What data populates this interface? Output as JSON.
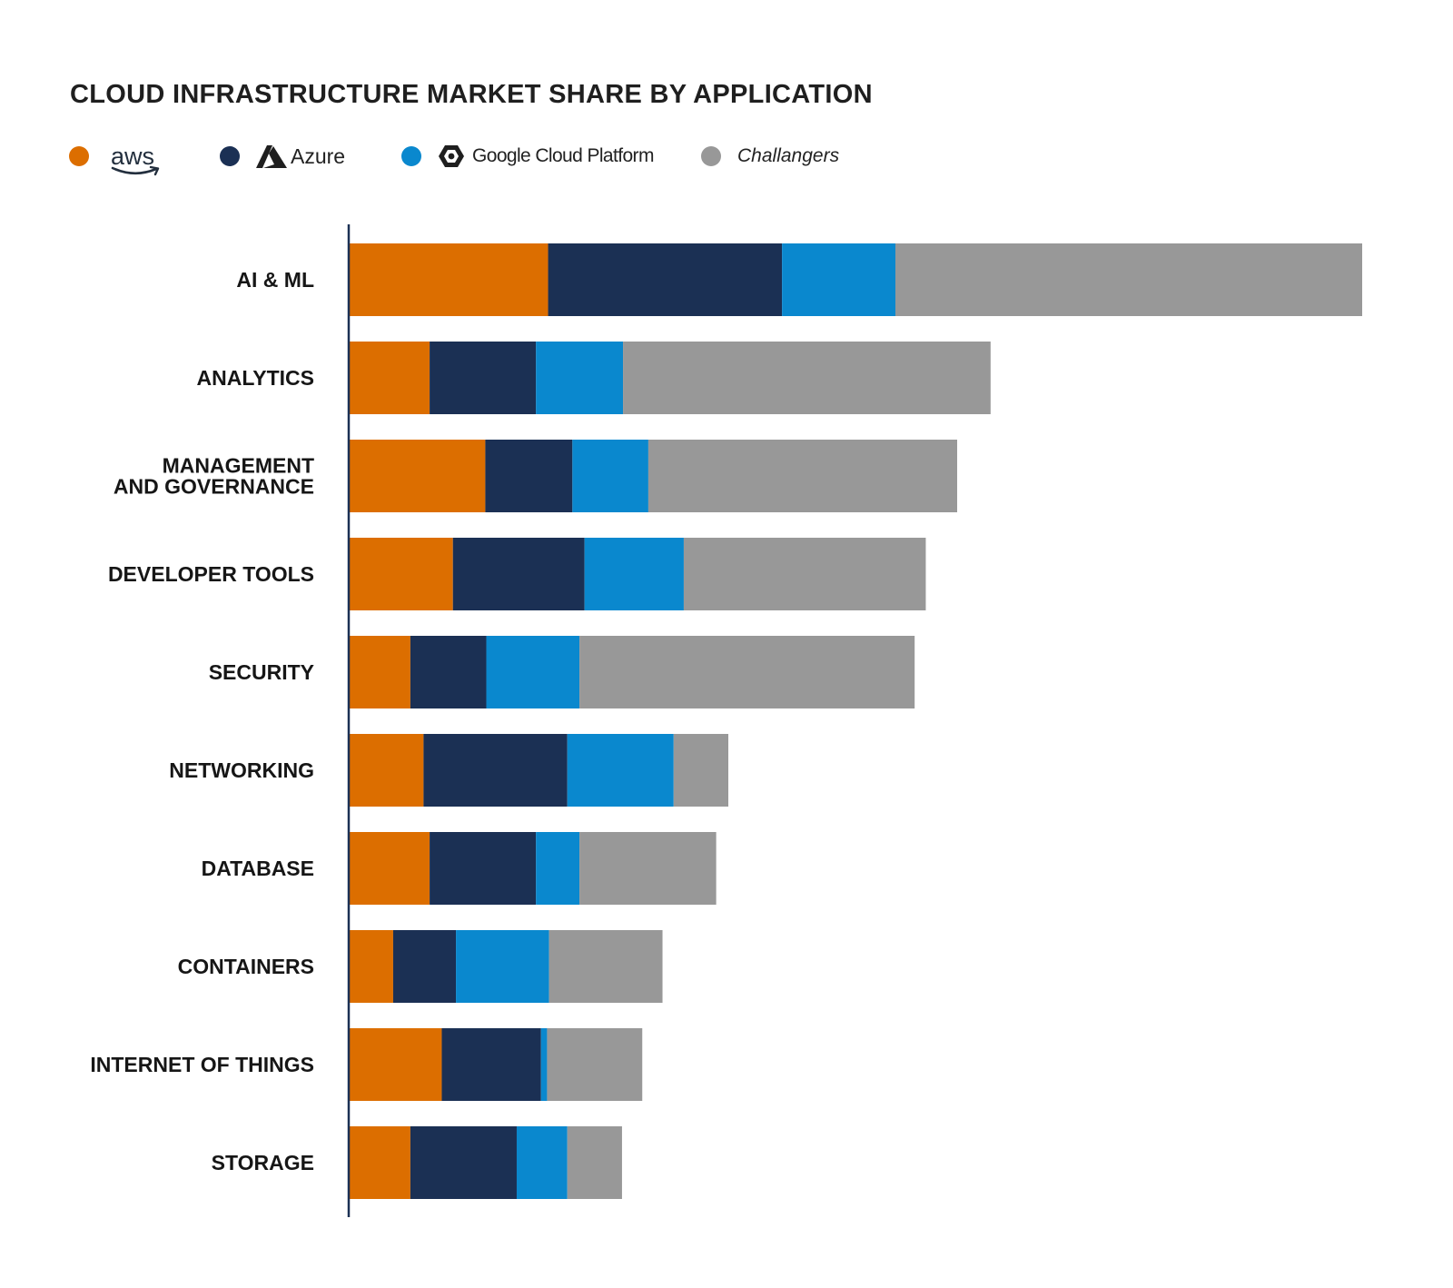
{
  "title": "CLOUD INFRASTRUCTURE MARKET SHARE BY APPLICATION",
  "legend": [
    {
      "name": "aws",
      "color": "#DC6E00",
      "icon": "aws-logo-icon"
    },
    {
      "name": "Azure",
      "color": "#1B3054",
      "icon": "azure-logo-icon"
    },
    {
      "name": "Google Cloud Platform",
      "color": "#0A88CE",
      "icon": "google-cloud-logo-icon"
    },
    {
      "name": "Challangers",
      "color": "#989898",
      "icon": ""
    }
  ],
  "chart_data": {
    "type": "bar",
    "orientation": "horizontal",
    "stacked": true,
    "title": "CLOUD INFRASTRUCTURE MARKET SHARE BY APPLICATION",
    "xlabel": "",
    "ylabel": "",
    "grid": false,
    "legend_position": "top-left",
    "xlim": [
      0,
      100
    ],
    "categories": [
      "AI & ML",
      "ANALYTICS",
      "MANAGEMENT AND GOVERNANCE",
      "DEVELOPER TOOLS",
      "SECURITY",
      "NETWORKING",
      "DATABASE",
      "CONTAINERS",
      "INTERNET OF THINGS",
      "STORAGE"
    ],
    "category_lines": [
      [
        "AI & ML"
      ],
      [
        "ANALYTICS"
      ],
      [
        "MANAGEMENT",
        "AND GOVERNANCE"
      ],
      [
        "DEVELOPER TOOLS"
      ],
      [
        "SECURITY"
      ],
      [
        "NETWORKING"
      ],
      [
        "DATABASE"
      ],
      [
        "CONTAINERS"
      ],
      [
        "INTERNET OF THINGS"
      ],
      [
        "STORAGE"
      ]
    ],
    "series": [
      {
        "name": "aws",
        "color": "#DC6E00",
        "values": [
          19.6,
          7.9,
          13.4,
          10.2,
          6.0,
          7.3,
          7.9,
          4.3,
          9.1,
          6.0
        ]
      },
      {
        "name": "Azure",
        "color": "#1B3054",
        "values": [
          23.1,
          10.5,
          8.6,
          13.0,
          7.5,
          14.2,
          10.5,
          6.2,
          9.8,
          10.5
        ]
      },
      {
        "name": "Google Cloud Platform",
        "color": "#0A88CE",
        "values": [
          11.2,
          8.6,
          7.5,
          9.8,
          9.2,
          10.5,
          4.3,
          9.2,
          0.6,
          5.0
        ]
      },
      {
        "name": "Challangers",
        "color": "#989898",
        "values": [
          46.1,
          36.3,
          30.5,
          23.9,
          33.1,
          5.4,
          13.5,
          11.2,
          9.4,
          5.4
        ]
      }
    ]
  }
}
